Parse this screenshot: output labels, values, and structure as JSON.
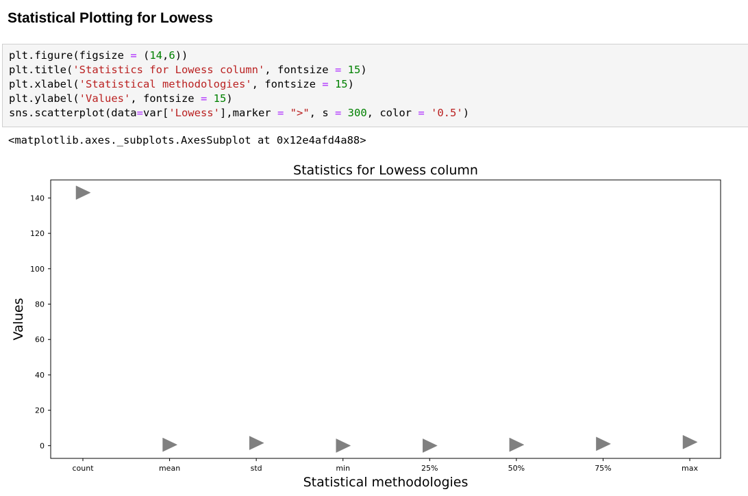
{
  "notebook": {
    "heading": "Statistical Plotting for Lowess",
    "code_lines": [
      [
        {
          "t": "plt.figure(figsize ",
          "c": ""
        },
        {
          "t": "=",
          "c": "op"
        },
        {
          "t": " (",
          "c": ""
        },
        {
          "t": "14",
          "c": "num"
        },
        {
          "t": ",",
          "c": ""
        },
        {
          "t": "6",
          "c": "num"
        },
        {
          "t": "))",
          "c": ""
        }
      ],
      [
        {
          "t": "plt.title(",
          "c": ""
        },
        {
          "t": "'Statistics for Lowess column'",
          "c": "str"
        },
        {
          "t": ", fontsize ",
          "c": ""
        },
        {
          "t": "=",
          "c": "op"
        },
        {
          "t": " ",
          "c": ""
        },
        {
          "t": "15",
          "c": "num"
        },
        {
          "t": ")",
          "c": ""
        }
      ],
      [
        {
          "t": "plt.xlabel(",
          "c": ""
        },
        {
          "t": "'Statistical methodologies'",
          "c": "str"
        },
        {
          "t": ", fontsize ",
          "c": ""
        },
        {
          "t": "=",
          "c": "op"
        },
        {
          "t": " ",
          "c": ""
        },
        {
          "t": "15",
          "c": "num"
        },
        {
          "t": ")",
          "c": ""
        }
      ],
      [
        {
          "t": "plt.ylabel(",
          "c": ""
        },
        {
          "t": "'Values'",
          "c": "str"
        },
        {
          "t": ", fontsize ",
          "c": ""
        },
        {
          "t": "=",
          "c": "op"
        },
        {
          "t": " ",
          "c": ""
        },
        {
          "t": "15",
          "c": "num"
        },
        {
          "t": ")",
          "c": ""
        }
      ],
      [
        {
          "t": "sns.scatterplot(data",
          "c": ""
        },
        {
          "t": "=",
          "c": "op"
        },
        {
          "t": "var[",
          "c": ""
        },
        {
          "t": "'Lowess'",
          "c": "str"
        },
        {
          "t": "],marker ",
          "c": ""
        },
        {
          "t": "=",
          "c": "op"
        },
        {
          "t": " ",
          "c": ""
        },
        {
          "t": "\">\"",
          "c": "str"
        },
        {
          "t": ", s ",
          "c": ""
        },
        {
          "t": "=",
          "c": "op"
        },
        {
          "t": " ",
          "c": ""
        },
        {
          "t": "300",
          "c": "num"
        },
        {
          "t": ", color ",
          "c": ""
        },
        {
          "t": "=",
          "c": "op"
        },
        {
          "t": " ",
          "c": ""
        },
        {
          "t": "'0.5'",
          "c": "str"
        },
        {
          "t": ")",
          "c": ""
        }
      ]
    ],
    "output_text": "<matplotlib.axes._subplots.AxesSubplot at 0x12e4afd4a88>"
  },
  "colors": {
    "code_bg": "#f5f5f5",
    "keyword_op": "#aa22ff",
    "string": "#ba2121",
    "number": "#008000",
    "marker": "#808080"
  },
  "chart_data": {
    "type": "scatter",
    "title": "Statistics for Lowess column",
    "xlabel": "Statistical methodologies",
    "ylabel": "Values",
    "categories": [
      "count",
      "mean",
      "std",
      "min",
      "25%",
      "50%",
      "75%",
      "max"
    ],
    "values": [
      143,
      0.5,
      1.5,
      0.0,
      0.0,
      0.5,
      1.0,
      2.0
    ],
    "yticks": [
      0,
      20,
      40,
      60,
      80,
      100,
      120,
      140
    ],
    "ylim": [
      -7.2,
      150.2
    ],
    "marker": "triangle-right",
    "grid": false
  }
}
